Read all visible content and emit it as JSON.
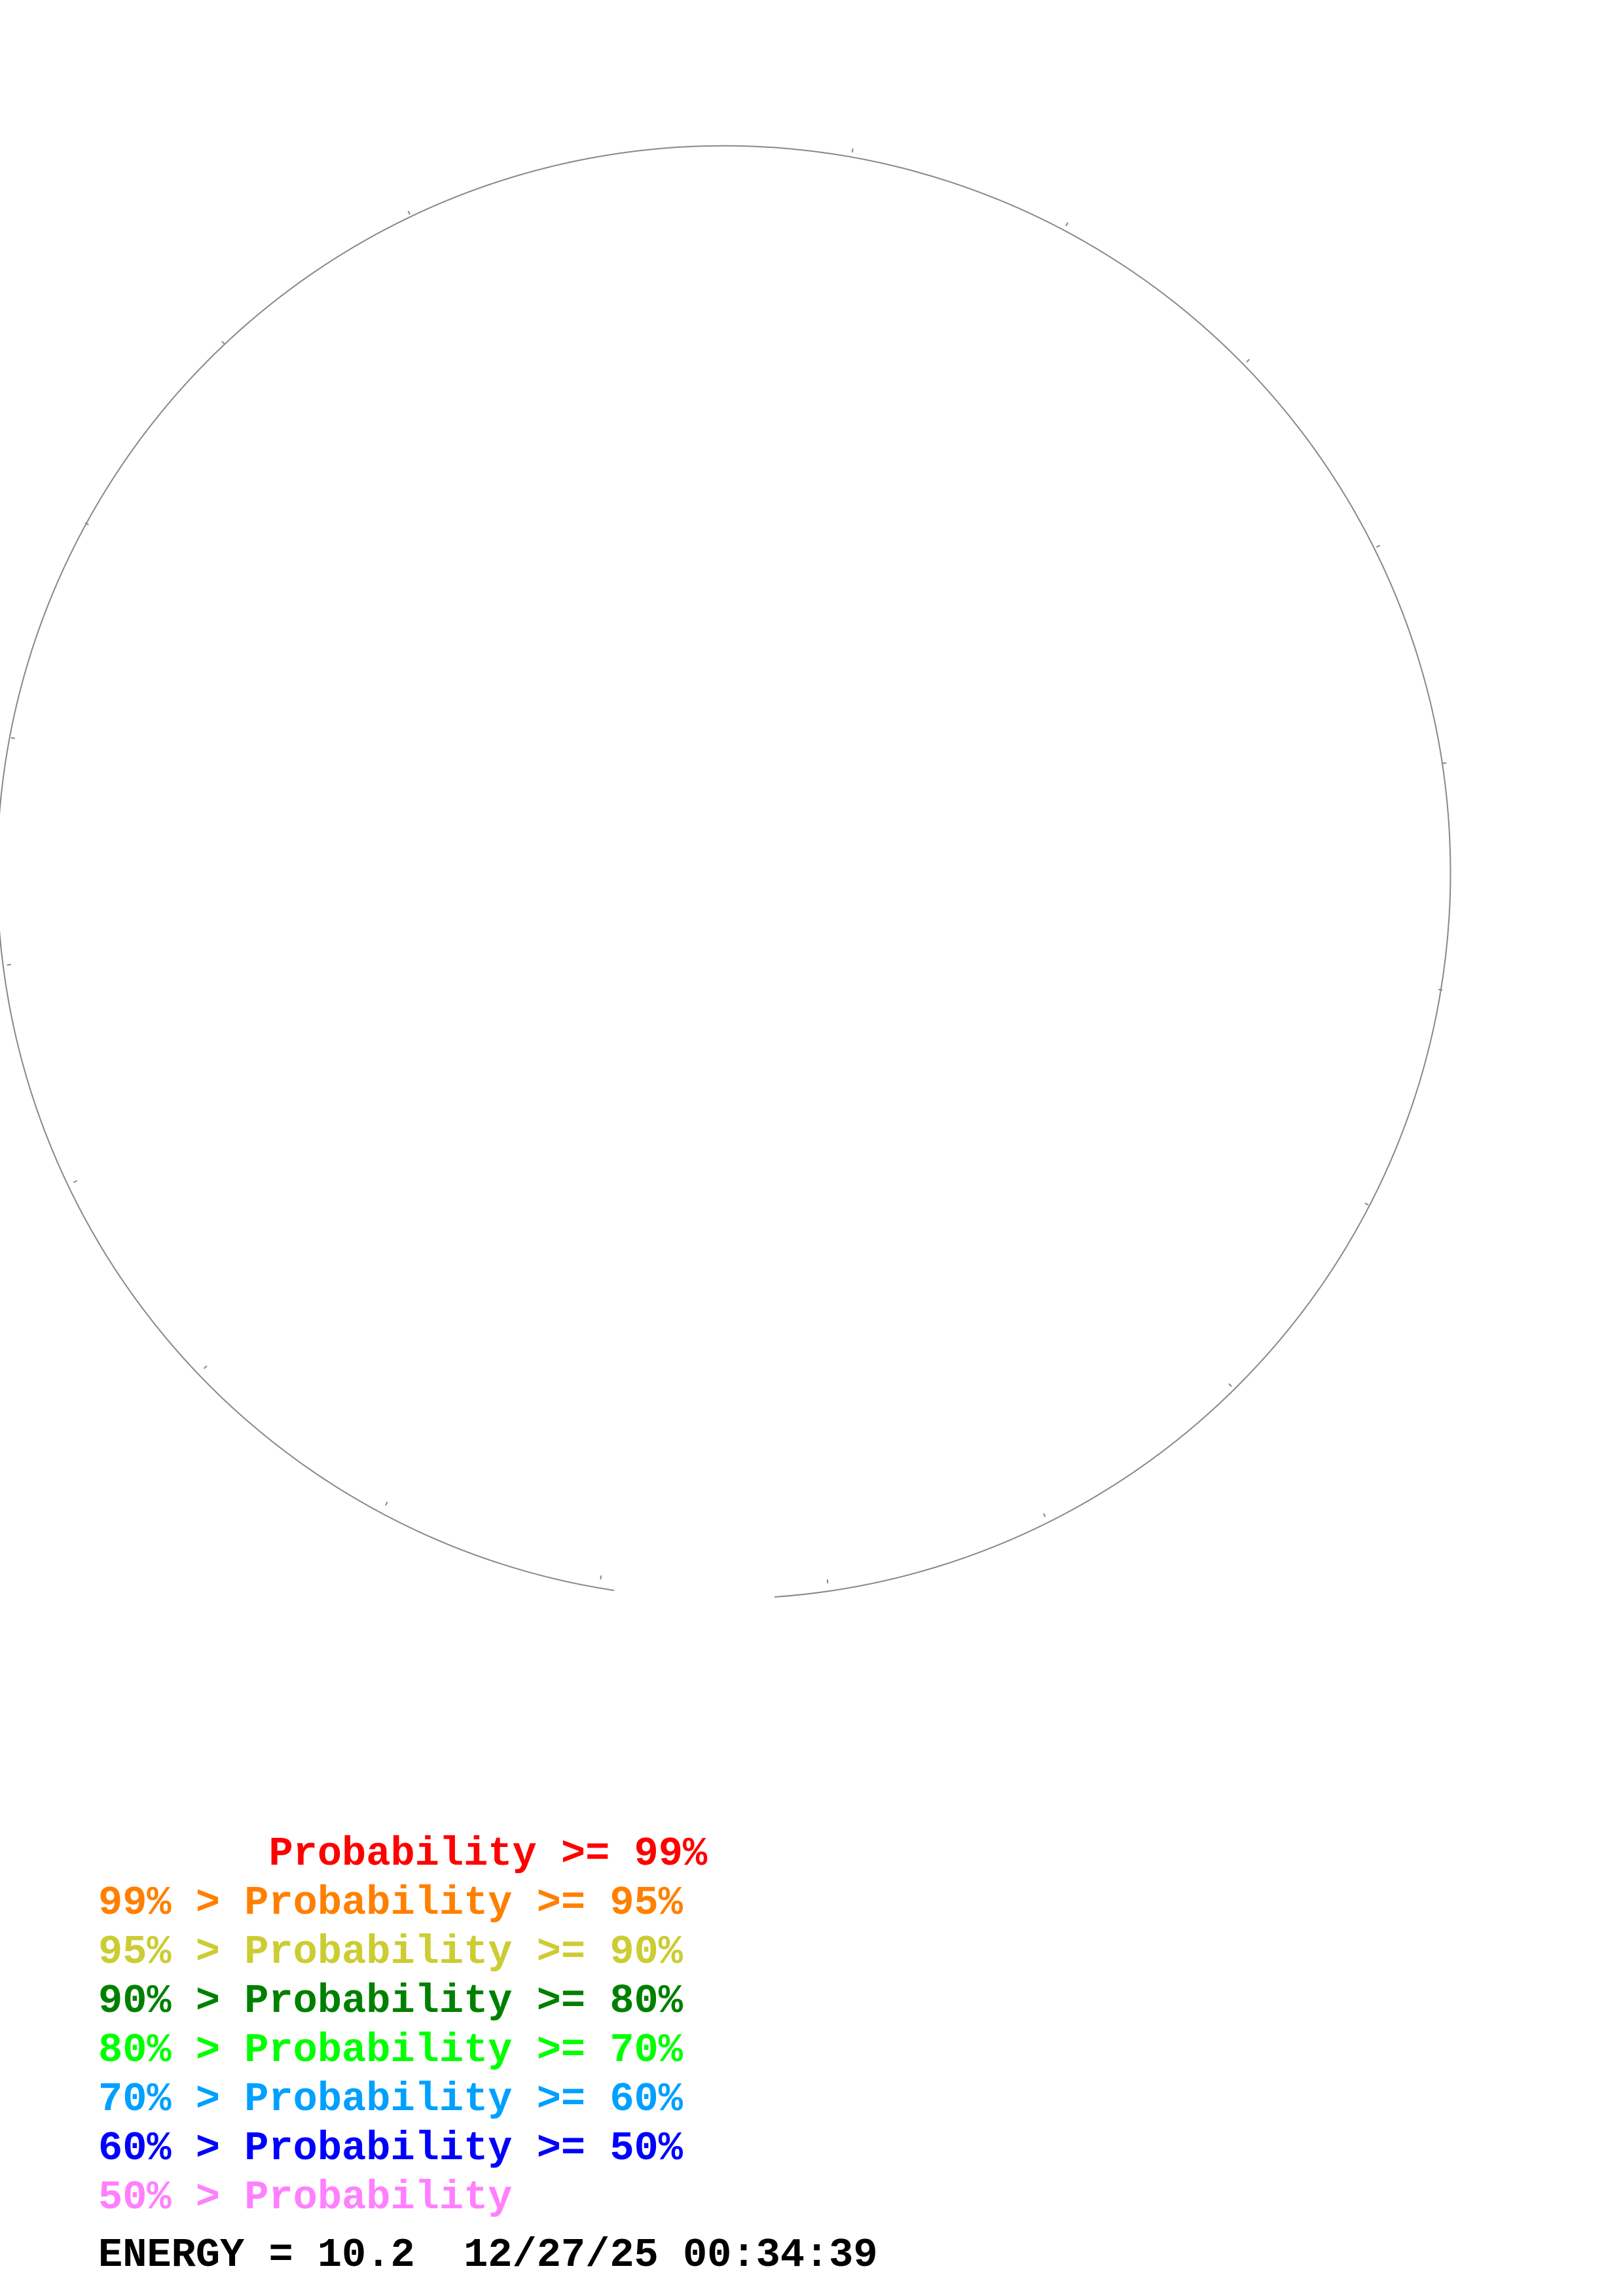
{
  "legend": [
    {
      "prefix": "       ",
      "text": "Probability >= 99%",
      "color": "#ff0000"
    },
    {
      "prefix": "",
      "text": "99% > Probability >= 95%",
      "color": "#ff8000"
    },
    {
      "prefix": "",
      "text": "95% > Probability >= 90%",
      "color": "#cccc33"
    },
    {
      "prefix": "",
      "text": "90% > Probability >= 80%",
      "color": "#008000"
    },
    {
      "prefix": "",
      "text": "80% > Probability >= 70%",
      "color": "#00ff00"
    },
    {
      "prefix": "",
      "text": "70% > Probability >= 60%",
      "color": "#00a0ff"
    },
    {
      "prefix": "",
      "text": "60% > Probability >= 50%",
      "color": "#0000ff"
    },
    {
      "prefix": "",
      "text": "50% > Probability",
      "color": "#ff80ff"
    }
  ],
  "footer": {
    "energy": "ENERGY = 10.2  12/27/25 00:34:39"
  },
  "colors": {
    "backbone": "#888888"
  }
}
